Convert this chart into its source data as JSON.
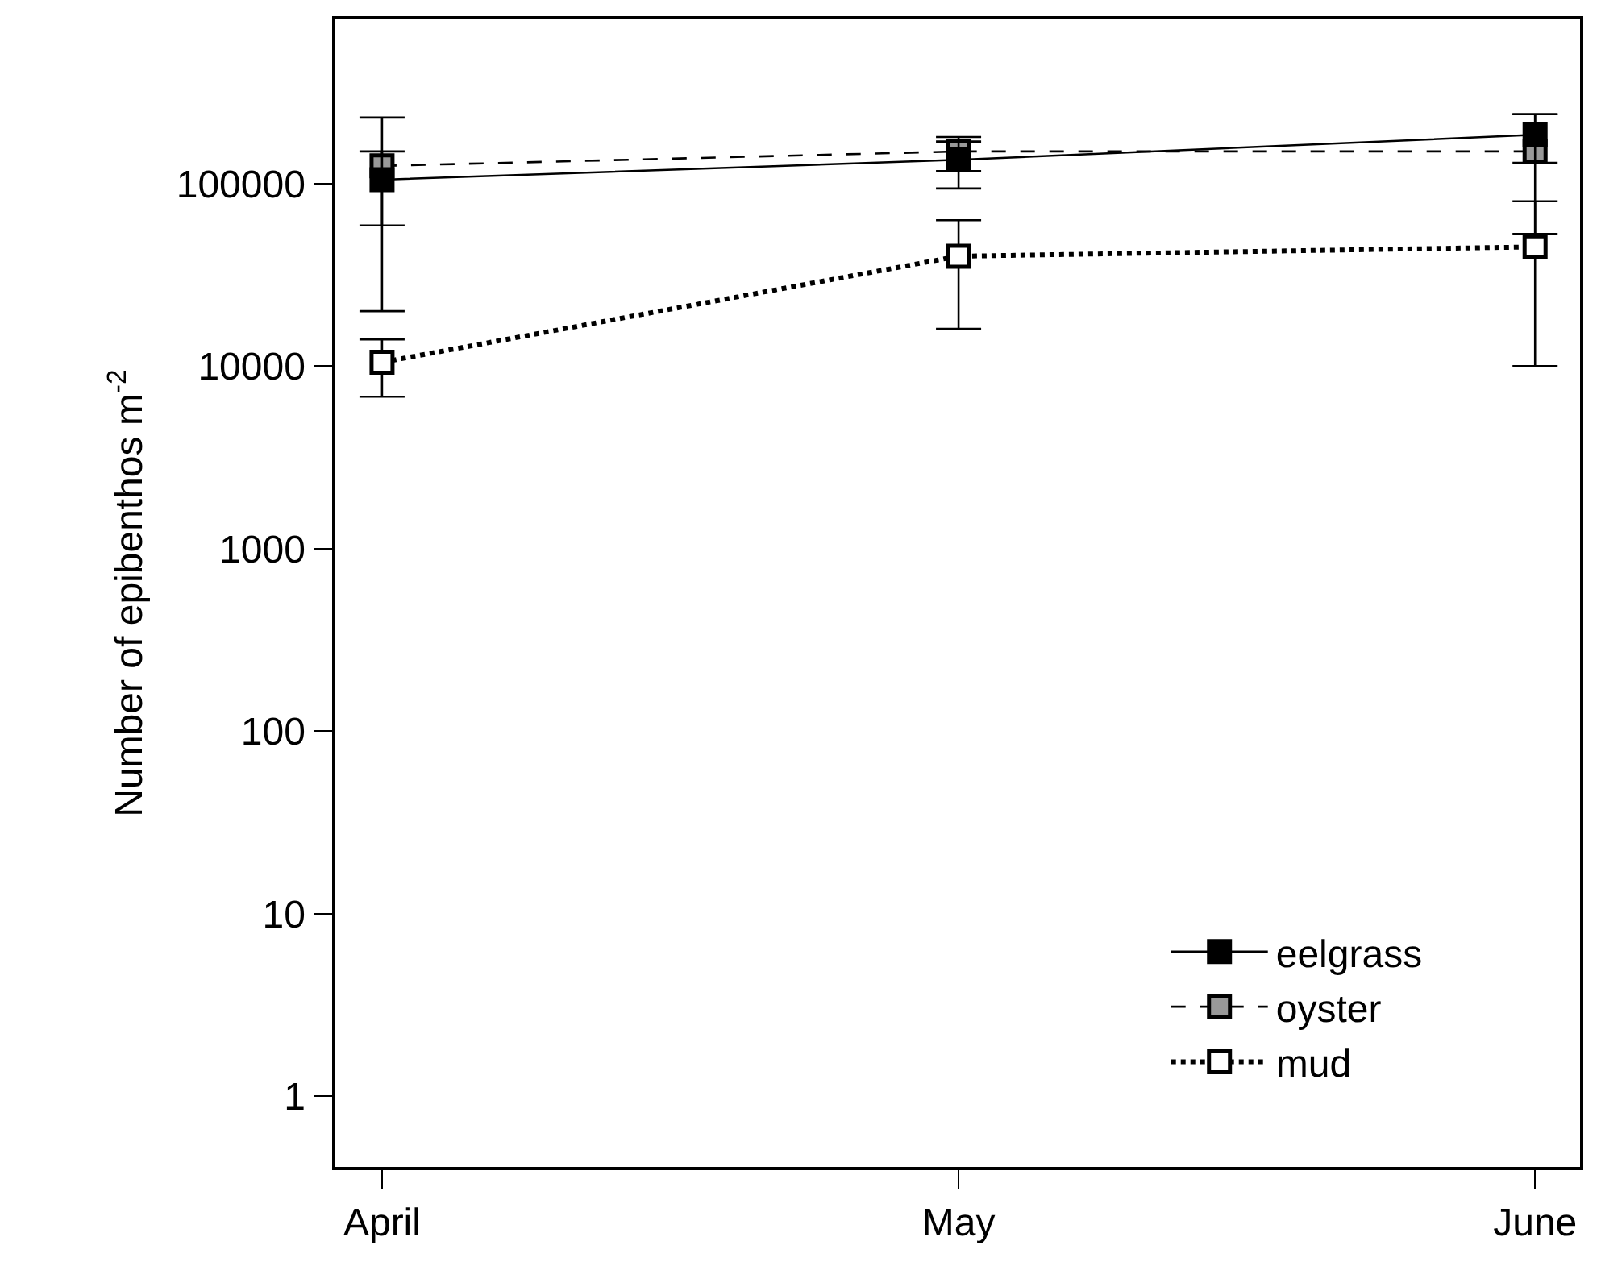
{
  "chart_data": {
    "type": "line",
    "ylabel": "Number of epibenthos m$^{-2}$",
    "categories": [
      "April",
      "May",
      "June"
    ],
    "series": [
      {
        "name": "eelgrass",
        "color": "#000000",
        "line_style": "solid",
        "values": [
          105000,
          135000,
          185000
        ],
        "errors": [
          [
            20000,
            230000
          ],
          [
            94000,
            180000
          ],
          [
            130000,
            240000
          ]
        ]
      },
      {
        "name": "oyster",
        "color": "#999999",
        "line_style": "dashed",
        "values": [
          125000,
          150000,
          150000
        ],
        "errors": [
          [
            59000,
            150000
          ],
          [
            117000,
            170000
          ],
          [
            53000,
            240000
          ]
        ]
      },
      {
        "name": "mud",
        "color": "#ffffff",
        "line_style": "dotted",
        "values": [
          10500,
          40000,
          45000
        ],
        "errors": [
          [
            6800,
            14000
          ],
          [
            16000,
            63000
          ],
          [
            10000,
            80000
          ]
        ]
      }
    ],
    "log": true,
    "ylim": [
      0.41,
      794000
    ],
    "yticks": [
      1,
      10,
      100,
      1000,
      10000,
      100000
    ],
    "marker": "square",
    "legend": "bottom right"
  }
}
